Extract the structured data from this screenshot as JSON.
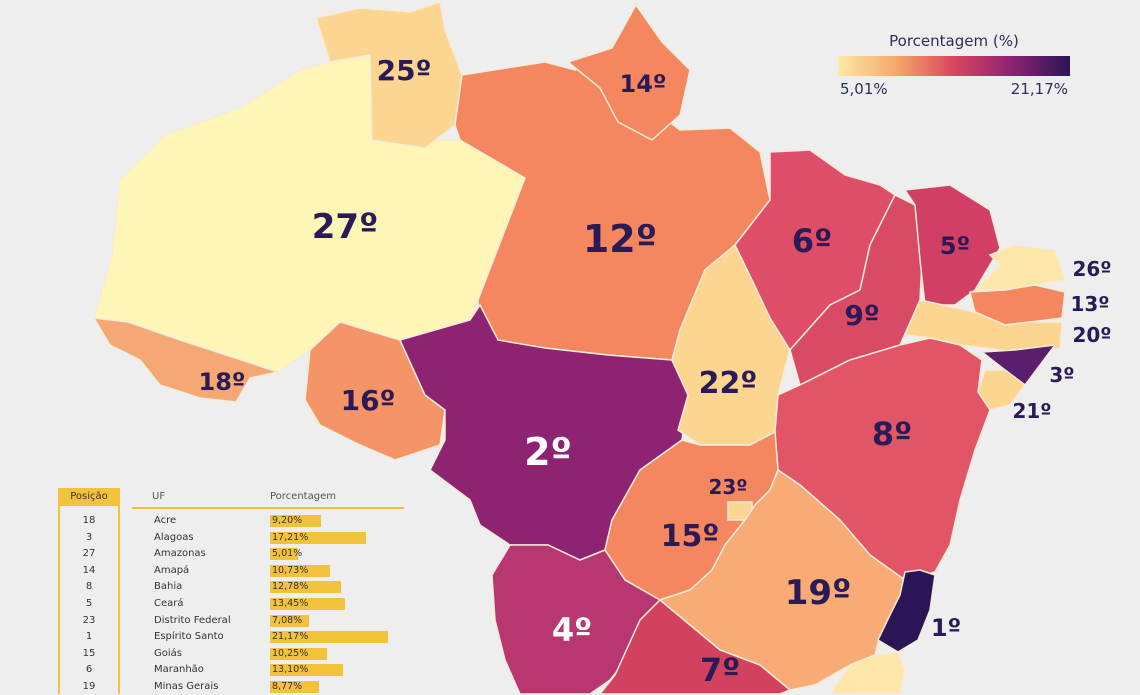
{
  "legend": {
    "title": "Porcentagem (%)",
    "min": "5,01%",
    "max": "21,17%"
  },
  "map_labels": [
    {
      "id": "rr",
      "text": "25º"
    },
    {
      "id": "ap",
      "text": "14º"
    },
    {
      "id": "am",
      "text": "27º"
    },
    {
      "id": "pa",
      "text": "12º"
    },
    {
      "id": "ma",
      "text": "6º"
    },
    {
      "id": "ce",
      "text": "5º"
    },
    {
      "id": "rn",
      "text": "26º"
    },
    {
      "id": "pb",
      "text": "13º"
    },
    {
      "id": "pe",
      "text": "20º"
    },
    {
      "id": "al",
      "text": "3º"
    },
    {
      "id": "se",
      "text": "21º"
    },
    {
      "id": "pi",
      "text": "9º"
    },
    {
      "id": "ac",
      "text": "18º"
    },
    {
      "id": "ro",
      "text": "16º"
    },
    {
      "id": "mt",
      "text": "2º"
    },
    {
      "id": "to",
      "text": "22º"
    },
    {
      "id": "ba",
      "text": "8º"
    },
    {
      "id": "df",
      "text": "23º"
    },
    {
      "id": "go",
      "text": "15º"
    },
    {
      "id": "mg",
      "text": "19º"
    },
    {
      "id": "es",
      "text": "1º"
    },
    {
      "id": "ms",
      "text": "4º"
    },
    {
      "id": "sp",
      "text": "7º"
    }
  ],
  "table": {
    "headers": {
      "position": "Posição",
      "uf": "UF",
      "percent": "Porcentagem"
    },
    "rows": [
      {
        "pos": "18",
        "uf": "Acre",
        "pct": "9,20%",
        "value": 9.2
      },
      {
        "pos": "3",
        "uf": "Alagoas",
        "pct": "17,21%",
        "value": 17.21
      },
      {
        "pos": "27",
        "uf": "Amazonas",
        "pct": "5,01%",
        "value": 5.01
      },
      {
        "pos": "14",
        "uf": "Amapá",
        "pct": "10,73%",
        "value": 10.73
      },
      {
        "pos": "8",
        "uf": "Bahia",
        "pct": "12,78%",
        "value": 12.78
      },
      {
        "pos": "5",
        "uf": "Ceará",
        "pct": "13,45%",
        "value": 13.45
      },
      {
        "pos": "23",
        "uf": "Distrito Federal",
        "pct": "7,08%",
        "value": 7.08
      },
      {
        "pos": "1",
        "uf": "Espírito Santo",
        "pct": "21,17%",
        "value": 21.17
      },
      {
        "pos": "15",
        "uf": "Goiás",
        "pct": "10,25%",
        "value": 10.25
      },
      {
        "pos": "6",
        "uf": "Maranhão",
        "pct": "13,10%",
        "value": 13.1
      },
      {
        "pos": "19",
        "uf": "Minas Gerais",
        "pct": "8,77%",
        "value": 8.77
      }
    ]
  },
  "colors": {
    "lowest": "#fdf6b7",
    "low": "#fcd590",
    "mid": "#f4875f",
    "high": "#df4e68",
    "higher": "#b93770",
    "highest": "#2a1557"
  }
}
